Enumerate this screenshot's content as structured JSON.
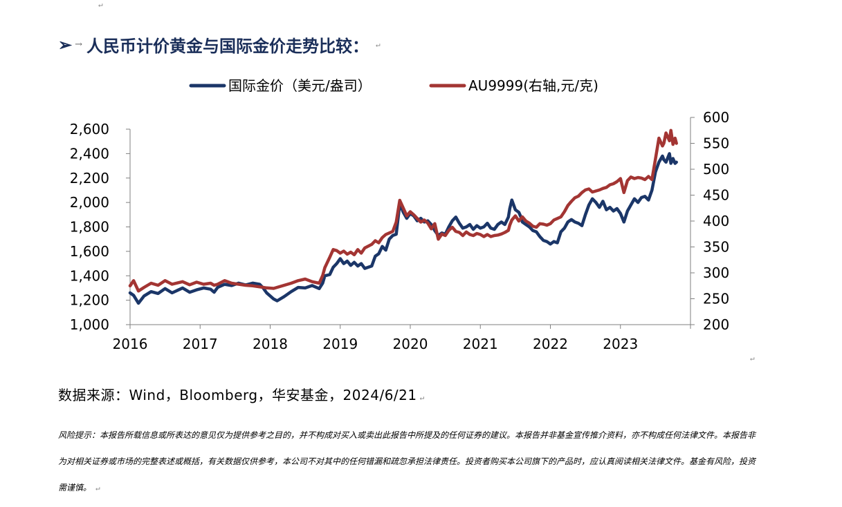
{
  "marks": {
    "paragraph": "↵"
  },
  "heading": {
    "bullet": "➢",
    "arrow": "→",
    "text": "人民币计价黄金与国际金价走势比较："
  },
  "chart_data": {
    "type": "line",
    "title": "",
    "xlabel": "",
    "ylabel": "",
    "x_ticks": [
      "2016",
      "2017",
      "2018",
      "2019",
      "2020",
      "2021",
      "2022",
      "2023"
    ],
    "left_axis": {
      "range": [
        1000,
        2600
      ],
      "ticks": [
        "1,000",
        "1,200",
        "1,400",
        "1,600",
        "1,800",
        "2,000",
        "2,200",
        "2,400",
        "2,600"
      ]
    },
    "right_axis": {
      "range": [
        200,
        600
      ],
      "ticks": [
        "200",
        "250",
        "300",
        "350",
        "400",
        "450",
        "500",
        "550",
        "600"
      ]
    },
    "x_range": [
      2016.0,
      2024.0
    ],
    "grid": false,
    "legend_position": "top-center",
    "series": [
      {
        "name": "国际金价（美元/盎司）",
        "axis": "left",
        "color": "#1b3668",
        "points": [
          [
            2016.0,
            1260
          ],
          [
            2016.05,
            1240
          ],
          [
            2016.12,
            1175
          ],
          [
            2016.2,
            1235
          ],
          [
            2016.3,
            1270
          ],
          [
            2016.4,
            1255
          ],
          [
            2016.5,
            1295
          ],
          [
            2016.6,
            1260
          ],
          [
            2016.75,
            1300
          ],
          [
            2016.85,
            1265
          ],
          [
            2016.95,
            1285
          ],
          [
            2017.05,
            1300
          ],
          [
            2017.15,
            1290
          ],
          [
            2017.2,
            1265
          ],
          [
            2017.25,
            1305
          ],
          [
            2017.35,
            1330
          ],
          [
            2017.45,
            1320
          ],
          [
            2017.55,
            1340
          ],
          [
            2017.65,
            1325
          ],
          [
            2017.75,
            1340
          ],
          [
            2017.85,
            1330
          ],
          [
            2017.9,
            1300
          ],
          [
            2017.95,
            1260
          ],
          [
            2018.05,
            1210
          ],
          [
            2018.1,
            1195
          ],
          [
            2018.2,
            1230
          ],
          [
            2018.3,
            1270
          ],
          [
            2018.4,
            1305
          ],
          [
            2018.5,
            1300
          ],
          [
            2018.6,
            1320
          ],
          [
            2018.7,
            1295
          ],
          [
            2018.75,
            1340
          ],
          [
            2018.78,
            1400
          ],
          [
            2018.85,
            1410
          ],
          [
            2018.9,
            1470
          ],
          [
            2018.95,
            1500
          ],
          [
            2019.0,
            1540
          ],
          [
            2019.05,
            1500
          ],
          [
            2019.1,
            1520
          ],
          [
            2019.15,
            1485
          ],
          [
            2019.2,
            1510
          ],
          [
            2019.25,
            1480
          ],
          [
            2019.3,
            1500
          ],
          [
            2019.35,
            1460
          ],
          [
            2019.45,
            1480
          ],
          [
            2019.5,
            1560
          ],
          [
            2019.55,
            1580
          ],
          [
            2019.6,
            1640
          ],
          [
            2019.65,
            1610
          ],
          [
            2019.7,
            1700
          ],
          [
            2019.75,
            1730
          ],
          [
            2019.8,
            1740
          ],
          [
            2019.85,
            1990
          ],
          [
            2019.9,
            1920
          ],
          [
            2019.95,
            1870
          ],
          [
            2020.0,
            1910
          ],
          [
            2020.05,
            1890
          ],
          [
            2020.1,
            1850
          ],
          [
            2020.15,
            1870
          ],
          [
            2020.2,
            1840
          ],
          [
            2020.25,
            1850
          ],
          [
            2020.3,
            1820
          ],
          [
            2020.35,
            1770
          ],
          [
            2020.4,
            1730
          ],
          [
            2020.45,
            1750
          ],
          [
            2020.5,
            1740
          ],
          [
            2020.55,
            1800
          ],
          [
            2020.6,
            1850
          ],
          [
            2020.65,
            1880
          ],
          [
            2020.7,
            1830
          ],
          [
            2020.75,
            1790
          ],
          [
            2020.8,
            1800
          ],
          [
            2020.85,
            1820
          ],
          [
            2020.9,
            1780
          ],
          [
            2020.95,
            1810
          ],
          [
            2021.0,
            1790
          ],
          [
            2021.05,
            1800
          ],
          [
            2021.1,
            1830
          ],
          [
            2021.15,
            1790
          ],
          [
            2021.2,
            1780
          ],
          [
            2021.25,
            1820
          ],
          [
            2021.3,
            1840
          ],
          [
            2021.35,
            1820
          ],
          [
            2021.4,
            1880
          ],
          [
            2021.42,
            1950
          ],
          [
            2021.45,
            2020
          ],
          [
            2021.5,
            1940
          ],
          [
            2021.55,
            1920
          ],
          [
            2021.58,
            1880
          ],
          [
            2021.6,
            1840
          ],
          [
            2021.65,
            1820
          ],
          [
            2021.7,
            1800
          ],
          [
            2021.75,
            1770
          ],
          [
            2021.8,
            1760
          ],
          [
            2021.85,
            1720
          ],
          [
            2021.9,
            1690
          ],
          [
            2021.95,
            1680
          ],
          [
            2022.0,
            1660
          ],
          [
            2022.05,
            1680
          ],
          [
            2022.1,
            1670
          ],
          [
            2022.15,
            1760
          ],
          [
            2022.2,
            1790
          ],
          [
            2022.25,
            1840
          ],
          [
            2022.3,
            1860
          ],
          [
            2022.35,
            1840
          ],
          [
            2022.4,
            1830
          ],
          [
            2022.45,
            1810
          ],
          [
            2022.5,
            1900
          ],
          [
            2022.55,
            1980
          ],
          [
            2022.6,
            2030
          ],
          [
            2022.65,
            2000
          ],
          [
            2022.7,
            1960
          ],
          [
            2022.75,
            2010
          ],
          [
            2022.8,
            1940
          ],
          [
            2022.85,
            1960
          ],
          [
            2022.9,
            1930
          ],
          [
            2022.95,
            1950
          ],
          [
            2023.0,
            1910
          ],
          [
            2023.05,
            1840
          ],
          [
            2023.1,
            1930
          ],
          [
            2023.15,
            1980
          ],
          [
            2023.2,
            2030
          ],
          [
            2023.25,
            2000
          ],
          [
            2023.3,
            2040
          ],
          [
            2023.35,
            2050
          ],
          [
            2023.4,
            2020
          ],
          [
            2023.45,
            2100
          ],
          [
            2023.5,
            2250
          ],
          [
            2023.55,
            2330
          ],
          [
            2023.6,
            2380
          ],
          [
            2023.62,
            2350
          ],
          [
            2023.65,
            2330
          ],
          [
            2023.7,
            2400
          ],
          [
            2023.72,
            2320
          ],
          [
            2023.75,
            2360
          ],
          [
            2023.78,
            2320
          ],
          [
            2023.8,
            2330
          ]
        ]
      },
      {
        "name": "AU9999(右轴,元/克)",
        "axis": "right",
        "color": "#a33533",
        "points": [
          [
            2016.0,
            275
          ],
          [
            2016.05,
            285
          ],
          [
            2016.12,
            265
          ],
          [
            2016.2,
            272
          ],
          [
            2016.3,
            280
          ],
          [
            2016.4,
            276
          ],
          [
            2016.5,
            285
          ],
          [
            2016.6,
            278
          ],
          [
            2016.75,
            283
          ],
          [
            2016.85,
            277
          ],
          [
            2016.95,
            282
          ],
          [
            2017.05,
            278
          ],
          [
            2017.15,
            280
          ],
          [
            2017.2,
            276
          ],
          [
            2017.25,
            278
          ],
          [
            2017.35,
            285
          ],
          [
            2017.45,
            280
          ],
          [
            2017.55,
            278
          ],
          [
            2017.65,
            276
          ],
          [
            2017.75,
            275
          ],
          [
            2017.85,
            273
          ],
          [
            2017.9,
            272
          ],
          [
            2017.95,
            271
          ],
          [
            2018.05,
            270
          ],
          [
            2018.1,
            272
          ],
          [
            2018.2,
            276
          ],
          [
            2018.3,
            280
          ],
          [
            2018.4,
            285
          ],
          [
            2018.5,
            288
          ],
          [
            2018.6,
            283
          ],
          [
            2018.7,
            280
          ],
          [
            2018.75,
            295
          ],
          [
            2018.78,
            310
          ],
          [
            2018.85,
            330
          ],
          [
            2018.9,
            345
          ],
          [
            2018.95,
            343
          ],
          [
            2019.0,
            338
          ],
          [
            2019.05,
            342
          ],
          [
            2019.1,
            336
          ],
          [
            2019.15,
            340
          ],
          [
            2019.2,
            335
          ],
          [
            2019.25,
            345
          ],
          [
            2019.3,
            338
          ],
          [
            2019.35,
            348
          ],
          [
            2019.45,
            355
          ],
          [
            2019.5,
            362
          ],
          [
            2019.55,
            358
          ],
          [
            2019.6,
            368
          ],
          [
            2019.65,
            374
          ],
          [
            2019.7,
            377
          ],
          [
            2019.75,
            380
          ],
          [
            2019.8,
            398
          ],
          [
            2019.85,
            440
          ],
          [
            2019.9,
            425
          ],
          [
            2019.95,
            410
          ],
          [
            2020.0,
            418
          ],
          [
            2020.05,
            412
          ],
          [
            2020.1,
            405
          ],
          [
            2020.15,
            398
          ],
          [
            2020.2,
            402
          ],
          [
            2020.25,
            396
          ],
          [
            2020.3,
            385
          ],
          [
            2020.35,
            395
          ],
          [
            2020.4,
            365
          ],
          [
            2020.45,
            375
          ],
          [
            2020.5,
            372
          ],
          [
            2020.55,
            382
          ],
          [
            2020.6,
            388
          ],
          [
            2020.65,
            380
          ],
          [
            2020.7,
            378
          ],
          [
            2020.75,
            372
          ],
          [
            2020.8,
            379
          ],
          [
            2020.85,
            374
          ],
          [
            2020.9,
            372
          ],
          [
            2020.95,
            376
          ],
          [
            2021.0,
            374
          ],
          [
            2021.05,
            370
          ],
          [
            2021.1,
            374
          ],
          [
            2021.15,
            370
          ],
          [
            2021.2,
            372
          ],
          [
            2021.25,
            373
          ],
          [
            2021.3,
            375
          ],
          [
            2021.35,
            378
          ],
          [
            2021.4,
            382
          ],
          [
            2021.42,
            392
          ],
          [
            2021.45,
            402
          ],
          [
            2021.5,
            410
          ],
          [
            2021.55,
            400
          ],
          [
            2021.58,
            405
          ],
          [
            2021.6,
            408
          ],
          [
            2021.65,
            400
          ],
          [
            2021.7,
            396
          ],
          [
            2021.75,
            390
          ],
          [
            2021.8,
            388
          ],
          [
            2021.85,
            395
          ],
          [
            2021.9,
            394
          ],
          [
            2021.95,
            392
          ],
          [
            2022.0,
            395
          ],
          [
            2022.05,
            402
          ],
          [
            2022.1,
            405
          ],
          [
            2022.15,
            408
          ],
          [
            2022.2,
            418
          ],
          [
            2022.25,
            430
          ],
          [
            2022.3,
            438
          ],
          [
            2022.35,
            445
          ],
          [
            2022.4,
            448
          ],
          [
            2022.45,
            455
          ],
          [
            2022.5,
            460
          ],
          [
            2022.55,
            462
          ],
          [
            2022.6,
            456
          ],
          [
            2022.65,
            458
          ],
          [
            2022.7,
            460
          ],
          [
            2022.75,
            463
          ],
          [
            2022.8,
            465
          ],
          [
            2022.85,
            470
          ],
          [
            2022.9,
            472
          ],
          [
            2022.95,
            476
          ],
          [
            2023.0,
            482
          ],
          [
            2023.05,
            455
          ],
          [
            2023.1,
            478
          ],
          [
            2023.15,
            485
          ],
          [
            2023.2,
            482
          ],
          [
            2023.25,
            484
          ],
          [
            2023.3,
            483
          ],
          [
            2023.35,
            480
          ],
          [
            2023.4,
            486
          ],
          [
            2023.45,
            480
          ],
          [
            2023.5,
            520
          ],
          [
            2023.55,
            560
          ],
          [
            2023.6,
            545
          ],
          [
            2023.62,
            550
          ],
          [
            2023.65,
            570
          ],
          [
            2023.7,
            555
          ],
          [
            2023.72,
            575
          ],
          [
            2023.75,
            548
          ],
          [
            2023.78,
            560
          ],
          [
            2023.8,
            550
          ]
        ]
      }
    ]
  },
  "source": {
    "text": "数据来源：Wind，Bloomberg，华安基金，2024/6/21"
  },
  "disclaimer": {
    "text": "风险提示：本报告所载信息或所表达的意见仅为提供参考之目的，并不构成对买入或卖出此报告中所提及的任何证券的建议。本报告并非基金宣传推介资料，亦不构成任何法律文件。本报告非为对相关证券或市场的完整表述或概括，有关数据仅供参考，本公司不对其中的任何错漏和疏忽承担法律责任。投资者购买本公司旗下的产品时，应认真阅读相关法律文件。基金有风险，投资需谨慎。"
  }
}
